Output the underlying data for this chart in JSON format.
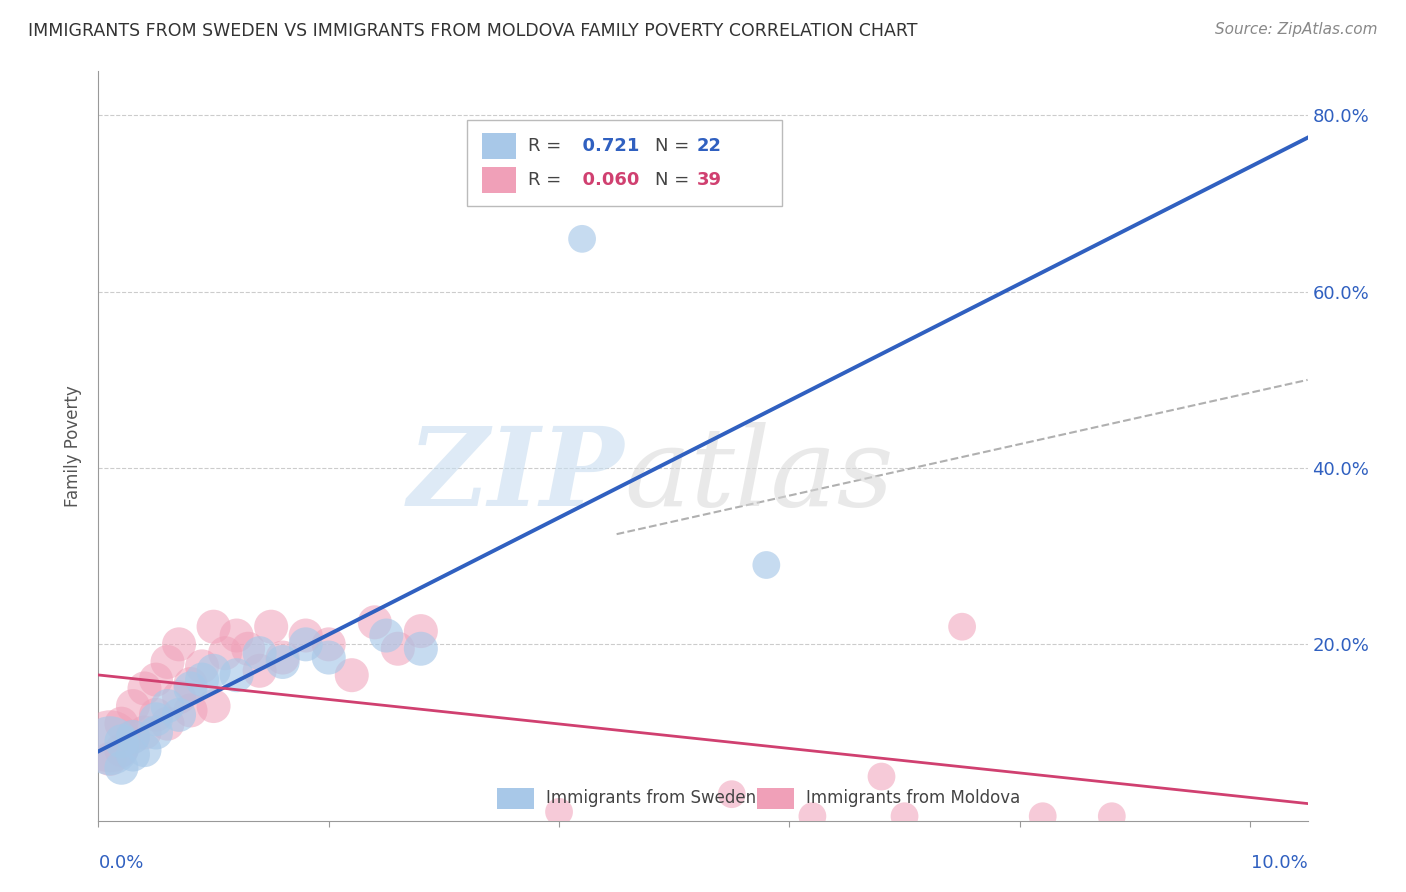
{
  "title": "IMMIGRANTS FROM SWEDEN VS IMMIGRANTS FROM MOLDOVA FAMILY POVERTY CORRELATION CHART",
  "source": "Source: ZipAtlas.com",
  "ylabel": "Family Poverty",
  "sweden_R": 0.721,
  "sweden_N": 22,
  "moldova_R": 0.06,
  "moldova_N": 39,
  "sweden_color": "#a8c8e8",
  "moldova_color": "#f0a0b8",
  "sweden_line_color": "#3060c0",
  "moldova_line_color": "#d04070",
  "dashed_line_color": "#b0b0b0",
  "grid_color": "#cccccc",
  "title_color": "#333333",
  "sweden_points": [
    [
      0.001,
      0.085
    ],
    [
      0.002,
      0.06
    ],
    [
      0.002,
      0.09
    ],
    [
      0.003,
      0.075
    ],
    [
      0.003,
      0.095
    ],
    [
      0.004,
      0.08
    ],
    [
      0.005,
      0.1
    ],
    [
      0.005,
      0.115
    ],
    [
      0.006,
      0.13
    ],
    [
      0.007,
      0.12
    ],
    [
      0.008,
      0.15
    ],
    [
      0.009,
      0.16
    ],
    [
      0.01,
      0.17
    ],
    [
      0.012,
      0.165
    ],
    [
      0.014,
      0.19
    ],
    [
      0.016,
      0.18
    ],
    [
      0.018,
      0.2
    ],
    [
      0.02,
      0.185
    ],
    [
      0.025,
      0.21
    ],
    [
      0.028,
      0.195
    ],
    [
      0.042,
      0.66
    ],
    [
      0.058,
      0.29
    ]
  ],
  "moldova_points": [
    [
      0.001,
      0.09
    ],
    [
      0.001,
      0.07
    ],
    [
      0.002,
      0.08
    ],
    [
      0.002,
      0.11
    ],
    [
      0.003,
      0.095
    ],
    [
      0.003,
      0.13
    ],
    [
      0.004,
      0.1
    ],
    [
      0.004,
      0.15
    ],
    [
      0.005,
      0.12
    ],
    [
      0.005,
      0.16
    ],
    [
      0.006,
      0.11
    ],
    [
      0.006,
      0.18
    ],
    [
      0.007,
      0.14
    ],
    [
      0.007,
      0.2
    ],
    [
      0.008,
      0.125
    ],
    [
      0.008,
      0.155
    ],
    [
      0.009,
      0.175
    ],
    [
      0.01,
      0.13
    ],
    [
      0.01,
      0.22
    ],
    [
      0.011,
      0.19
    ],
    [
      0.012,
      0.21
    ],
    [
      0.013,
      0.195
    ],
    [
      0.014,
      0.17
    ],
    [
      0.015,
      0.22
    ],
    [
      0.016,
      0.185
    ],
    [
      0.018,
      0.21
    ],
    [
      0.02,
      0.2
    ],
    [
      0.022,
      0.165
    ],
    [
      0.024,
      0.225
    ],
    [
      0.026,
      0.195
    ],
    [
      0.028,
      0.215
    ],
    [
      0.04,
      0.01
    ],
    [
      0.055,
      0.03
    ],
    [
      0.062,
      0.005
    ],
    [
      0.068,
      0.05
    ],
    [
      0.07,
      0.005
    ],
    [
      0.075,
      0.22
    ],
    [
      0.082,
      0.005
    ],
    [
      0.088,
      0.005
    ]
  ],
  "sweden_sizes": [
    1800,
    600,
    600,
    600,
    600,
    600,
    600,
    600,
    600,
    600,
    600,
    600,
    600,
    600,
    600,
    600,
    600,
    600,
    600,
    600,
    400,
    400
  ],
  "moldova_sizes": [
    2000,
    600,
    600,
    600,
    600,
    600,
    600,
    600,
    600,
    600,
    600,
    600,
    600,
    600,
    600,
    600,
    600,
    600,
    600,
    600,
    600,
    600,
    600,
    600,
    600,
    600,
    600,
    600,
    600,
    600,
    600,
    400,
    400,
    400,
    400,
    400,
    400,
    400,
    400
  ],
  "ylim": [
    0,
    0.85
  ],
  "xlim": [
    0,
    0.105
  ],
  "yticks": [
    0.0,
    0.2,
    0.4,
    0.6,
    0.8
  ],
  "ytick_labels": [
    "",
    "20.0%",
    "40.0%",
    "60.0%",
    "80.0%"
  ],
  "bg_color": "#ffffff",
  "sweden_trend": [
    0.0,
    0.02,
    5.5
  ],
  "moldova_trend": [
    0.0,
    0.105,
    0.4
  ],
  "dash_trend": [
    0.048,
    0.105,
    0.33,
    0.5
  ]
}
